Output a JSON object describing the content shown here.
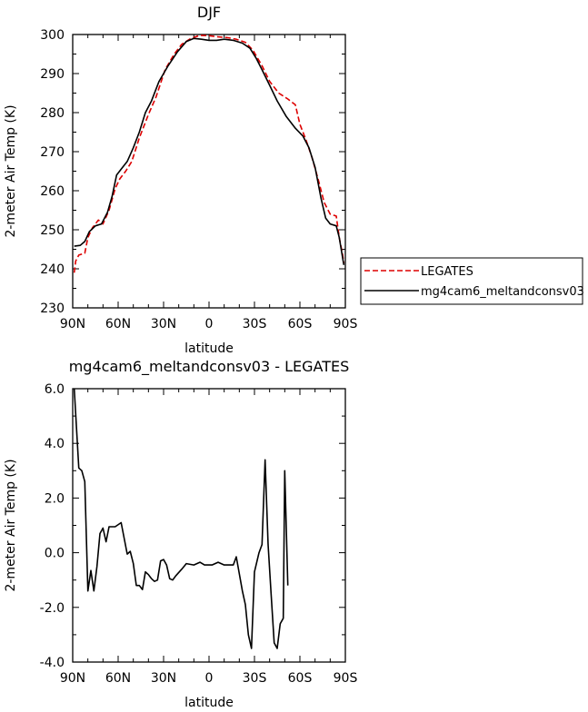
{
  "chart_data": [
    {
      "type": "line",
      "title": "DJF",
      "xlabel": "latitude",
      "ylabel": "2-meter Air Temp (K)",
      "xlim": [
        90,
        -90
      ],
      "ylim": [
        230,
        300
      ],
      "x_ticks": [
        90,
        60,
        30,
        0,
        -30,
        -60,
        -90
      ],
      "x_tick_labels": [
        "90N",
        "60N",
        "30N",
        "0",
        "30S",
        "60S",
        "90S"
      ],
      "y_ticks": [
        230,
        240,
        250,
        260,
        270,
        280,
        290,
        300
      ],
      "y_tick_labels": [
        "230",
        "240",
        "250",
        "260",
        "270",
        "280",
        "290",
        "300"
      ],
      "grid": false,
      "legend_position": "right",
      "legend": [
        "LEGATES",
        "mg4cam6_meltandconsv03"
      ],
      "series": [
        {
          "name": "LEGATES",
          "color": "#dd0000",
          "dash": "dashed",
          "points": [
            [
              89,
              239
            ],
            [
              88,
              242
            ],
            [
              86,
              243.5
            ],
            [
              82,
              244
            ],
            [
              80,
              248
            ],
            [
              77,
              250.5
            ],
            [
              73,
              252.5
            ],
            [
              70,
              251.5
            ],
            [
              66,
              255
            ],
            [
              62,
              260.5
            ],
            [
              59,
              263
            ],
            [
              55,
              265
            ],
            [
              51,
              267.5
            ],
            [
              46,
              273.5
            ],
            [
              40,
              279.5
            ],
            [
              35,
              284
            ],
            [
              29,
              291
            ],
            [
              23,
              295
            ],
            [
              18,
              297.5
            ],
            [
              12,
              299
            ],
            [
              6,
              299.8
            ],
            [
              0,
              299.7
            ],
            [
              -6,
              299.4
            ],
            [
              -12,
              299.2
            ],
            [
              -18,
              298.8
            ],
            [
              -24,
              298
            ],
            [
              -29,
              296
            ],
            [
              -35,
              292
            ],
            [
              -40,
              288
            ],
            [
              -46,
              285
            ],
            [
              -52,
              283.5
            ],
            [
              -57,
              282
            ],
            [
              -60,
              277
            ],
            [
              -64,
              273
            ],
            [
              -68,
              268.5
            ],
            [
              -72,
              263
            ],
            [
              -76,
              257
            ],
            [
              -80,
              254
            ],
            [
              -84,
              253.5
            ],
            [
              -86,
              248
            ],
            [
              -88,
              244
            ],
            [
              -89,
              241.5
            ]
          ]
        },
        {
          "name": "mg4cam6_meltandconsv03",
          "color": "#000000",
          "dash": "solid",
          "points": [
            [
              89,
              245.8
            ],
            [
              85,
              246
            ],
            [
              82,
              247
            ],
            [
              79,
              249.5
            ],
            [
              75,
              251
            ],
            [
              71,
              251.5
            ],
            [
              67,
              254.5
            ],
            [
              64,
              258.5
            ],
            [
              61,
              264
            ],
            [
              58,
              265.5
            ],
            [
              54,
              267.5
            ],
            [
              50,
              271
            ],
            [
              46,
              275
            ],
            [
              42,
              280
            ],
            [
              38,
              283
            ],
            [
              33,
              288
            ],
            [
              27,
              292
            ],
            [
              21,
              295.5
            ],
            [
              15,
              298.2
            ],
            [
              10,
              299
            ],
            [
              5,
              298.8
            ],
            [
              0,
              298.5
            ],
            [
              -5,
              298.5
            ],
            [
              -10,
              298.8
            ],
            [
              -16,
              298.5
            ],
            [
              -22,
              297.8
            ],
            [
              -27,
              296.5
            ],
            [
              -31,
              294
            ],
            [
              -35,
              291
            ],
            [
              -40,
              287
            ],
            [
              -45,
              283
            ],
            [
              -51,
              279
            ],
            [
              -57,
              276
            ],
            [
              -62,
              274
            ],
            [
              -66,
              271
            ],
            [
              -70,
              266
            ],
            [
              -74,
              258
            ],
            [
              -77,
              253
            ],
            [
              -80,
              251.5
            ],
            [
              -84,
              251
            ],
            [
              -86,
              248
            ],
            [
              -89,
              241
            ]
          ]
        }
      ]
    },
    {
      "type": "line",
      "title": "mg4cam6_meltandconsv03 - LEGATES",
      "xlabel": "latitude",
      "ylabel": "2-meter Air Temp (K)",
      "xlim": [
        90,
        -90
      ],
      "ylim": [
        -4,
        6
      ],
      "x_ticks": [
        90,
        60,
        30,
        0,
        -30,
        -60,
        -90
      ],
      "x_tick_labels": [
        "90N",
        "60N",
        "30N",
        "0",
        "30S",
        "60S",
        "90S"
      ],
      "y_ticks": [
        -4,
        -2,
        0,
        2,
        4,
        6
      ],
      "y_tick_labels": [
        "-4.0",
        "-2.0",
        "0.0",
        "2.0",
        "4.0",
        "6.0"
      ],
      "grid": false,
      "series": [
        {
          "color": "#000000",
          "dash": "solid",
          "points": [
            [
              89,
              6
            ],
            [
              86,
              3.1
            ],
            [
              84,
              3
            ],
            [
              82,
              2.6
            ],
            [
              80,
              -1.4
            ],
            [
              78,
              -0.65
            ],
            [
              76,
              -1.4
            ],
            [
              74,
              -0.5
            ],
            [
              72,
              0.7
            ],
            [
              70,
              0.9
            ],
            [
              68,
              0.4
            ],
            [
              66,
              0.95
            ],
            [
              62,
              0.95
            ],
            [
              58,
              1.1
            ],
            [
              54,
              -0.05
            ],
            [
              52,
              0.05
            ],
            [
              50,
              -0.4
            ],
            [
              48,
              -1.2
            ],
            [
              46,
              -1.2
            ],
            [
              44,
              -1.35
            ],
            [
              42,
              -0.7
            ],
            [
              40,
              -0.8
            ],
            [
              38,
              -0.95
            ],
            [
              36,
              -1.05
            ],
            [
              34,
              -1
            ],
            [
              32,
              -0.3
            ],
            [
              30,
              -0.25
            ],
            [
              28,
              -0.45
            ],
            [
              26,
              -0.95
            ],
            [
              24,
              -1
            ],
            [
              22,
              -0.85
            ],
            [
              18,
              -0.6
            ],
            [
              15,
              -0.4
            ],
            [
              10,
              -0.45
            ],
            [
              6,
              -0.35
            ],
            [
              3,
              -0.45
            ],
            [
              -2,
              -0.45
            ],
            [
              -6,
              -0.35
            ],
            [
              -10,
              -0.45
            ],
            [
              -14,
              -0.45
            ],
            [
              -16,
              -0.45
            ],
            [
              -18,
              -0.15
            ],
            [
              -22,
              -1.4
            ],
            [
              -24,
              -1.9
            ],
            [
              -26,
              -3
            ],
            [
              -28,
              -3.5
            ],
            [
              -30,
              -0.7
            ],
            [
              -33,
              0
            ],
            [
              -35,
              0.3
            ],
            [
              -37,
              3.4
            ],
            [
              -39,
              0.3
            ],
            [
              -41,
              -1.5
            ],
            [
              -43,
              -3.3
            ],
            [
              -45,
              -3.5
            ],
            [
              -47,
              -2.6
            ],
            [
              -49,
              -2.4
            ],
            [
              -50,
              3
            ],
            [
              -52,
              -1.2
            ]
          ]
        }
      ]
    }
  ]
}
